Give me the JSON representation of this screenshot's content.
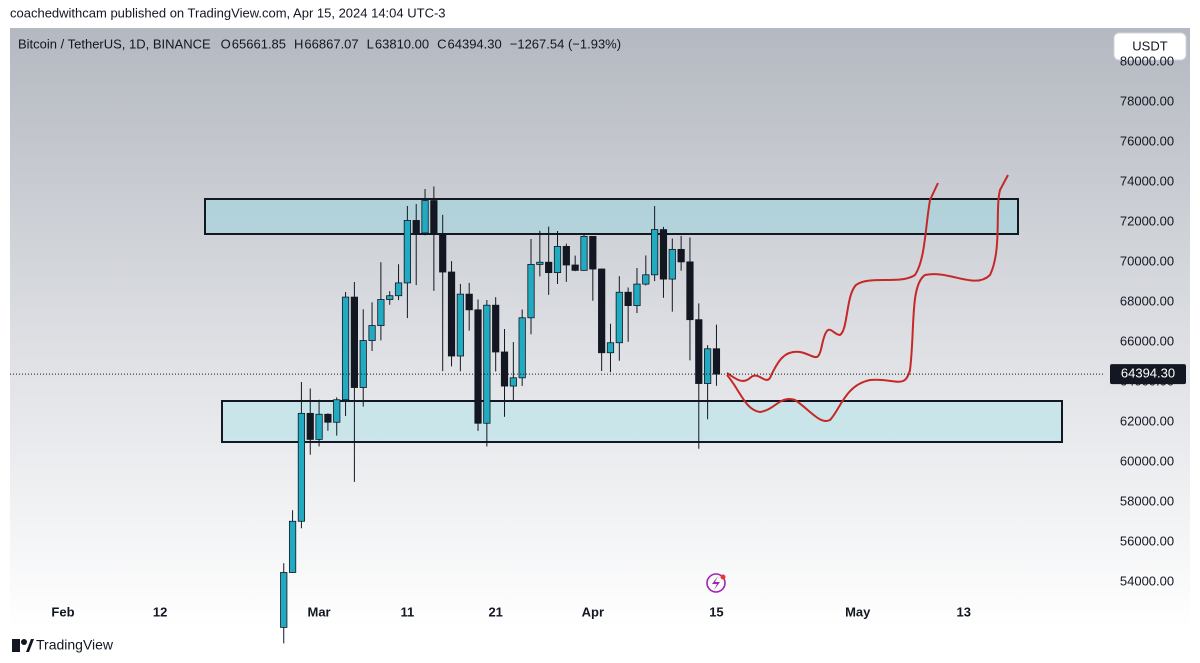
{
  "header": {
    "publisher": "coachedwithcam published on TradingView.com, Apr 15, 2024 14:04 UTC-3"
  },
  "footer": {
    "brand": "TradingView"
  },
  "currency_button": "USDT",
  "chart_data": {
    "type": "candlestick",
    "title": "Bitcoin / TetherUS, 1D, BINANCE",
    "ohlc_legend": [
      "O",
      "65661.85",
      "H",
      "66867.07",
      "L",
      "63810.00",
      "C",
      "64394.30",
      "−1267.54 (−1.93%)"
    ],
    "x": [
      "2024-02-26",
      "2024-02-27",
      "2024-02-28",
      "2024-02-29",
      "2024-03-01",
      "2024-03-02",
      "2024-03-03",
      "2024-03-04",
      "2024-03-05",
      "2024-03-06",
      "2024-03-07",
      "2024-03-08",
      "2024-03-09",
      "2024-03-10",
      "2024-03-11",
      "2024-03-12",
      "2024-03-13",
      "2024-03-14",
      "2024-03-15",
      "2024-03-16",
      "2024-03-17",
      "2024-03-18",
      "2024-03-19",
      "2024-03-20",
      "2024-03-21",
      "2024-03-22",
      "2024-03-23",
      "2024-03-24",
      "2024-03-25",
      "2024-03-26",
      "2024-03-27",
      "2024-03-28",
      "2024-03-29",
      "2024-03-30",
      "2024-03-31",
      "2024-04-01",
      "2024-04-02",
      "2024-04-03",
      "2024-04-04",
      "2024-04-05",
      "2024-04-06",
      "2024-04-07",
      "2024-04-08",
      "2024-04-09",
      "2024-04-10",
      "2024-04-11",
      "2024-04-12",
      "2024-04-13",
      "2024-04-14",
      "2024-04-15"
    ],
    "open": [
      51730,
      54476,
      57037,
      62432,
      61130,
      62387,
      61987,
      63113,
      68245,
      63724,
      66074,
      66823,
      68124,
      68314,
      68955,
      72078,
      71452,
      73072,
      71388,
      69499,
      65300,
      68393,
      67609,
      61937,
      67840,
      65501,
      63797,
      64209,
      67211,
      69880,
      69988,
      69469,
      70780,
      69850,
      69582,
      71280,
      69649,
      65463,
      65963,
      68487,
      67820,
      68896,
      69360,
      71620,
      69146,
      70631,
      70006,
      67116,
      63924,
      65661.85
    ],
    "high": [
      54938,
      57588,
      64000,
      63676,
      63114,
      62433,
      63231,
      68499,
      69000,
      67637,
      67985,
      69990,
      68541,
      69887,
      72800,
      72900,
      73650,
      73777,
      72357,
      70043,
      68904,
      68956,
      68124,
      68100,
      68240,
      66650,
      65999,
      67624,
      71150,
      71561,
      71769,
      71552,
      70916,
      70321,
      71366,
      71288,
      69674,
      66914,
      69291,
      68725,
      69700,
      70326,
      72797,
      71758,
      71172,
      71305,
      71227,
      67931,
      65840,
      66867.07
    ],
    "low": [
      50931,
      54450,
      56690,
      60364,
      60777,
      61561,
      61320,
      62300,
      59005,
      62772,
      65550,
      66082,
      67861,
      68094,
      67194,
      68845,
      71333,
      68555,
      64546,
      64780,
      64533,
      66566,
      61555,
      60775,
      64529,
      62260,
      63000,
      63803,
      66385,
      69280,
      68359,
      68903,
      69009,
      69540,
      69562,
      68062,
      64550,
      64493,
      65064,
      66011,
      67447,
      68824,
      69043,
      68210,
      67518,
      69567,
      65086,
      60660,
      62134,
      63810
    ],
    "close": [
      54476,
      57037,
      62432,
      61130,
      62387,
      61987,
      63113,
      68245,
      63724,
      66074,
      66823,
      68124,
      68314,
      68955,
      72078,
      71452,
      73072,
      71388,
      69499,
      65300,
      68393,
      67609,
      61937,
      67840,
      65501,
      63797,
      64209,
      67211,
      69880,
      69988,
      69469,
      70780,
      69850,
      69582,
      71280,
      69649,
      65463,
      65963,
      68487,
      67820,
      68896,
      69360,
      71620,
      69146,
      70631,
      70006,
      67116,
      63924,
      65661,
      64394.3
    ],
    "up_color": "#22abc0",
    "down_color": "#131722",
    "xlim": [
      "2024-01-26",
      "2024-05-29"
    ],
    "xticks": [
      {
        "value": "2024-02-01",
        "label": "Feb"
      },
      {
        "value": "2024-02-12",
        "label": "12"
      },
      {
        "value": "2024-03-01",
        "label": "Mar"
      },
      {
        "value": "2024-03-11",
        "label": "11"
      },
      {
        "value": "2024-03-21",
        "label": "21"
      },
      {
        "value": "2024-04-01",
        "label": "Apr"
      },
      {
        "value": "2024-04-15",
        "label": "15"
      },
      {
        "value": "2024-05-01",
        "label": "May"
      },
      {
        "value": "2024-05-13",
        "label": "13"
      }
    ],
    "ylim": [
      53100,
      81700
    ],
    "yticks": [
      {
        "value": 80000,
        "label": "80000.00"
      },
      {
        "value": 78000,
        "label": "78000.00"
      },
      {
        "value": 76000,
        "label": "76000.00"
      },
      {
        "value": 74000,
        "label": "74000.00"
      },
      {
        "value": 72000,
        "label": "72000.00"
      },
      {
        "value": 70000,
        "label": "70000.00"
      },
      {
        "value": 68000,
        "label": "68000.00"
      },
      {
        "value": 66000,
        "label": "66000.00"
      },
      {
        "value": 64000,
        "label": "64000.00"
      },
      {
        "value": 62000,
        "label": "62000.00"
      },
      {
        "value": 60000,
        "label": "60000.00"
      },
      {
        "value": 58000,
        "label": "58000.00"
      },
      {
        "value": 56000,
        "label": "56000.00"
      },
      {
        "value": 54000,
        "label": "54000.00"
      }
    ],
    "last_price": {
      "value": 64394.3,
      "label": "64394.30"
    }
  }
}
